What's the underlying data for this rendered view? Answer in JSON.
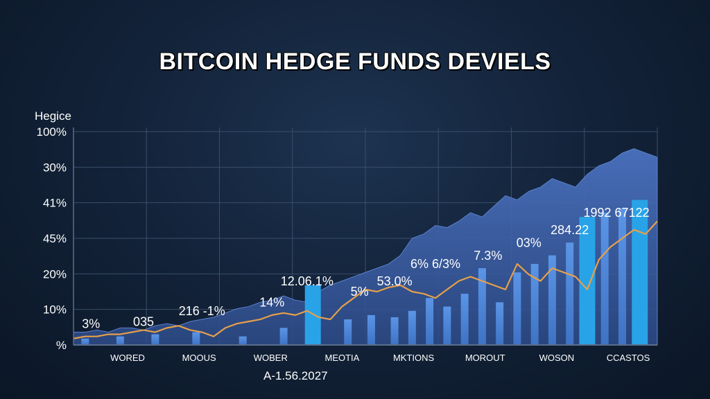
{
  "chart_data": {
    "type": "bar",
    "title": "BITCOIN HEDGE FUNDS DEVIELS",
    "ylabel": "Hegice",
    "footer": "A-1.56.2027",
    "y_tick_labels": [
      "%",
      "10%",
      "20%",
      "45%",
      "41%",
      "30%",
      "100%"
    ],
    "x_tick_labels": [
      "WORED",
      "MOOUS",
      "WOBER",
      "MEOTIA",
      "MKTIONS",
      "MOROUT",
      "WOSON",
      "CCASTOS"
    ],
    "ylim": [
      0,
      100
    ],
    "grid": true,
    "colors": {
      "bars": "#4a86d8",
      "highlight_bars": "#29a3e8",
      "area": "#3b5fa6",
      "line": "#e6a04a",
      "grid": "#3a4e6a",
      "axis": "#5a6e8a"
    },
    "series": [
      {
        "type": "area",
        "x": [
          0,
          2,
          4,
          6,
          8,
          10,
          12,
          14,
          16,
          18,
          20,
          22,
          24,
          26,
          28,
          30,
          32,
          34,
          36,
          38,
          40,
          42,
          44,
          46,
          48,
          50,
          52,
          54,
          56,
          58,
          60,
          62,
          64,
          66,
          68,
          70,
          72,
          74,
          76,
          78,
          80,
          82,
          84,
          86,
          88,
          90,
          92,
          94,
          96,
          98,
          100
        ],
        "values": [
          6,
          6,
          7,
          6,
          8,
          8,
          7,
          9,
          10,
          9,
          11,
          12,
          13,
          15,
          17,
          18,
          20,
          21,
          23,
          21,
          20,
          25,
          28,
          30,
          32,
          34,
          36,
          38,
          42,
          50,
          52,
          56,
          55,
          58,
          62,
          60,
          65,
          70,
          68,
          72,
          74,
          78,
          76,
          74,
          80,
          84,
          86,
          90,
          92,
          90,
          88
        ]
      },
      {
        "type": "line",
        "x": [
          0,
          2,
          4,
          6,
          8,
          10,
          12,
          14,
          16,
          18,
          20,
          22,
          24,
          26,
          28,
          30,
          32,
          34,
          36,
          38,
          40,
          42,
          44,
          46,
          48,
          50,
          52,
          54,
          56,
          58,
          60,
          62,
          64,
          66,
          68,
          70,
          72,
          74,
          76,
          78,
          80,
          82,
          84,
          86,
          88,
          90,
          92,
          94,
          96,
          98,
          100
        ],
        "values": [
          3,
          4,
          4,
          5,
          5,
          6,
          7,
          6,
          8,
          9,
          7,
          6,
          4,
          8,
          10,
          11,
          12,
          14,
          15,
          14,
          16,
          13,
          12,
          18,
          22,
          26,
          25,
          27,
          28,
          25,
          24,
          22,
          26,
          30,
          32,
          30,
          28,
          26,
          38,
          33,
          30,
          36,
          34,
          32,
          26,
          40,
          46,
          50,
          54,
          52,
          58
        ]
      },
      {
        "type": "bar",
        "x": [
          2,
          8,
          14,
          21,
          29,
          36,
          41,
          47,
          51,
          55,
          58,
          61,
          64,
          67,
          70,
          73,
          76,
          79,
          82,
          85,
          88,
          91,
          94,
          97
        ],
        "values": [
          3,
          4,
          5,
          6,
          4,
          8,
          28,
          12,
          14,
          13,
          16,
          22,
          18,
          24,
          36,
          20,
          34,
          38,
          42,
          48,
          60,
          62,
          64,
          68
        ],
        "highlight": [
          false,
          false,
          false,
          false,
          false,
          false,
          true,
          false,
          false,
          false,
          false,
          false,
          false,
          false,
          false,
          false,
          false,
          false,
          false,
          false,
          true,
          false,
          false,
          true
        ]
      }
    ],
    "annotations": [
      {
        "text": "3%",
        "x": 3,
        "y": 8
      },
      {
        "text": "035",
        "x": 12,
        "y": 9
      },
      {
        "text": "216 -1%",
        "x": 22,
        "y": 14
      },
      {
        "text": "14%",
        "x": 34,
        "y": 18
      },
      {
        "text": "12.06.1%",
        "x": 40,
        "y": 28
      },
      {
        "text": "5%",
        "x": 49,
        "y": 23
      },
      {
        "text": "53.0%",
        "x": 55,
        "y": 28
      },
      {
        "text": "6% 6/3%",
        "x": 62,
        "y": 36
      },
      {
        "text": "7.3%",
        "x": 71,
        "y": 40
      },
      {
        "text": "03%",
        "x": 78,
        "y": 46
      },
      {
        "text": "284.22",
        "x": 85,
        "y": 52
      },
      {
        "text": "1992 67122",
        "x": 93,
        "y": 60
      }
    ]
  }
}
